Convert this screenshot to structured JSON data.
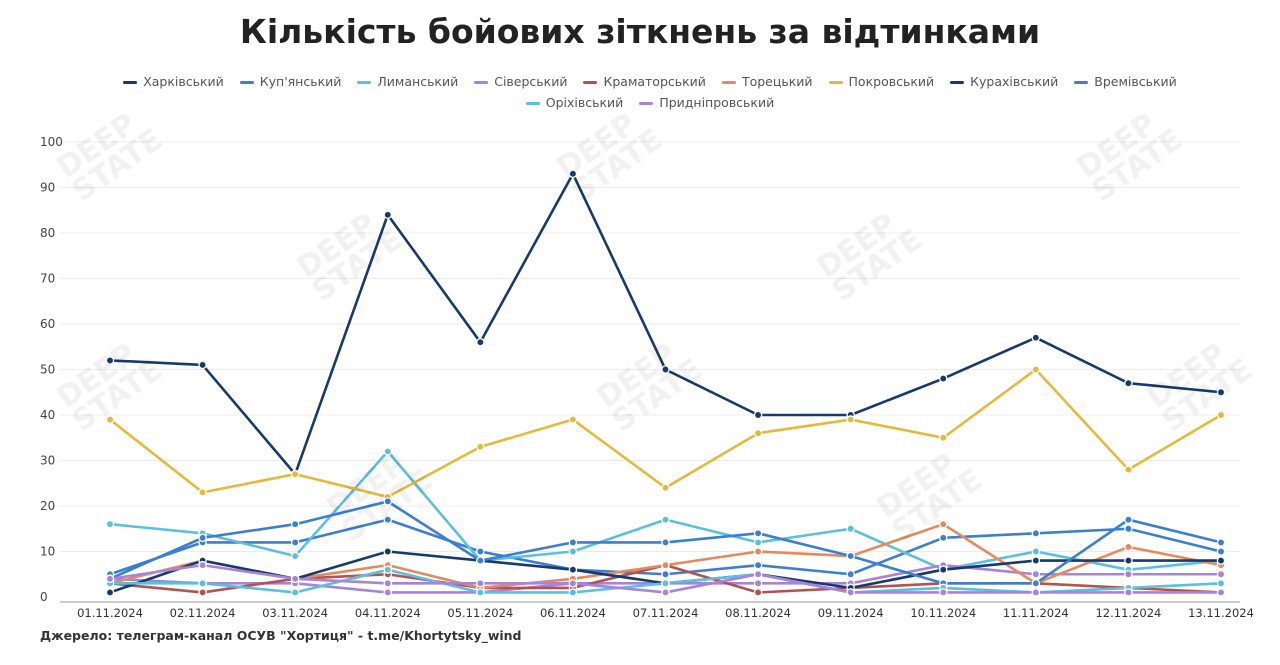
{
  "chart_data": {
    "type": "line",
    "title": "Кількість бойових зіткнень за відтинками",
    "x": [
      "01.11.2024",
      "02.11.2024",
      "03.11.2024",
      "04.11.2024",
      "05.11.2024",
      "06.11.2024",
      "07.11.2024",
      "08.11.2024",
      "09.11.2024",
      "10.11.2024",
      "11.11.2024",
      "12.11.2024",
      "13.11.2024"
    ],
    "ylim": [
      0,
      100
    ],
    "yticks": [
      0,
      10,
      20,
      30,
      40,
      50,
      60,
      70,
      80,
      90,
      100
    ],
    "grid": true,
    "legend_placement": "top",
    "series": [
      {
        "name": "Харківський",
        "color": "#173a6e",
        "values": [
          52,
          51,
          27,
          84,
          56,
          93,
          50,
          40,
          40,
          48,
          57,
          47,
          45
        ]
      },
      {
        "name": "Куп'янський",
        "color": "#3a7fd5",
        "values": [
          5,
          12,
          12,
          17,
          10,
          6,
          5,
          7,
          5,
          13,
          14,
          15,
          10
        ]
      },
      {
        "name": "Лиманський",
        "color": "#5bc0e0",
        "values": [
          16,
          14,
          9,
          32,
          8,
          10,
          17,
          12,
          15,
          6,
          10,
          6,
          8
        ]
      },
      {
        "name": "Сіверський",
        "color": "#a883dc",
        "values": [
          4,
          3,
          3,
          1,
          1,
          3,
          3,
          3,
          3,
          7,
          5,
          5,
          5
        ]
      },
      {
        "name": "Краматорський",
        "color": "#b4534e",
        "values": [
          3,
          1,
          4,
          5,
          2,
          2,
          7,
          1,
          2,
          3,
          3,
          2,
          1
        ]
      },
      {
        "name": "Торецький",
        "color": "#e8895a",
        "values": [
          3,
          8,
          4,
          7,
          2,
          4,
          7,
          10,
          9,
          16,
          3,
          11,
          7
        ]
      },
      {
        "name": "Покровський",
        "color": "#e5b93a",
        "values": [
          39,
          23,
          27,
          22,
          33,
          39,
          24,
          36,
          39,
          35,
          50,
          28,
          40
        ]
      },
      {
        "name": "Курахівський",
        "color": "#173a6e",
        "values": [
          1,
          8,
          4,
          10,
          8,
          6,
          3,
          5,
          2,
          6,
          8,
          8,
          8
        ]
      },
      {
        "name": "Времівський",
        "color": "#3a7fd5",
        "values": [
          4,
          13,
          16,
          21,
          8,
          12,
          12,
          14,
          9,
          3,
          3,
          17,
          12
        ]
      },
      {
        "name": "Оріхівський",
        "color": "#5bc0e0",
        "values": [
          3,
          3,
          1,
          6,
          1,
          1,
          3,
          5,
          1,
          2,
          1,
          2,
          3
        ]
      },
      {
        "name": "Придніпровський",
        "color": "#a883dc",
        "values": [
          4,
          7,
          4,
          3,
          3,
          3,
          1,
          5,
          1,
          1,
          1,
          1,
          1
        ]
      }
    ]
  },
  "source": "Джерело: телеграм-канал ОСУВ \"Хортиця\" - t.me/Khortytsky_wind",
  "watermark": "DEEP STATE"
}
